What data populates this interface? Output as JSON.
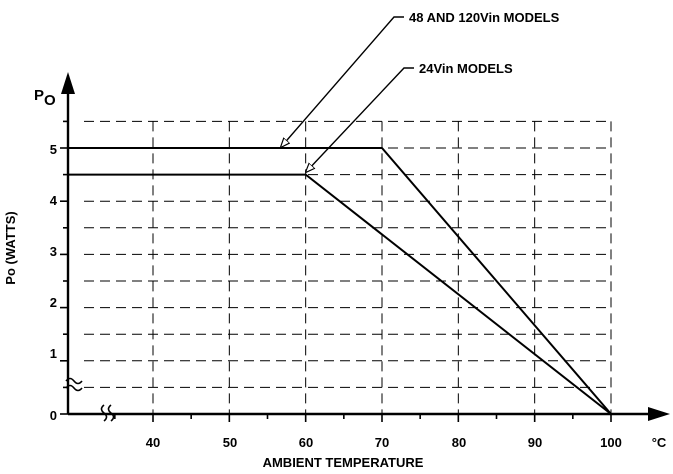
{
  "chart_data": {
    "type": "line",
    "title": "",
    "xlabel": "AMBIENT TEMPERATURE",
    "x_unit": "°C",
    "ylabel": "Po (WATTS)",
    "y_axis_symbol": "P",
    "y_axis_symbol_sub": "O",
    "xlim": [
      30,
      107
    ],
    "ylim": [
      0,
      5.8
    ],
    "x_ticks": [
      40,
      50,
      60,
      70,
      80,
      90,
      100
    ],
    "y_ticks": [
      0,
      1,
      2,
      3,
      4,
      5
    ],
    "axis_break": true,
    "grid": true,
    "grid_style": "dashed",
    "series": [
      {
        "name": "48 AND 120Vin MODELS",
        "x": [
          30,
          70,
          100
        ],
        "y": [
          5,
          5,
          0
        ]
      },
      {
        "name": "24Vin MODELS",
        "x": [
          30,
          60,
          100
        ],
        "y": [
          4.5,
          4.5,
          0
        ]
      }
    ],
    "colors": {
      "line": "#000000",
      "grid": "#000000",
      "background": "#ffffff"
    }
  }
}
